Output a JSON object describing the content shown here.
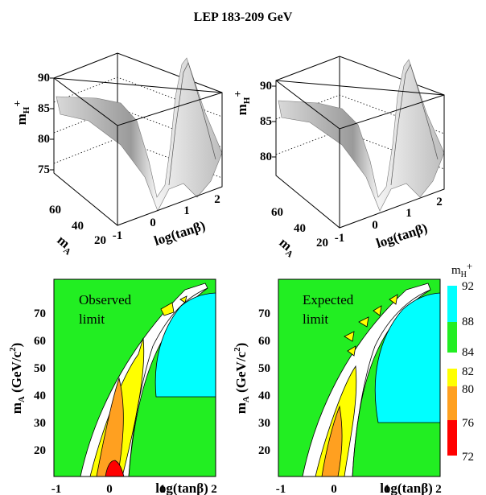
{
  "figure": {
    "title": "LEP 183-209 GeV"
  },
  "chart_data": [
    {
      "type": "surface3d",
      "panel": "observed-3d",
      "z_label": "m_H+",
      "z_ticks": [
        75,
        80,
        85,
        90
      ],
      "x_label": "log(tanβ)",
      "x_ticks": [
        -1,
        0,
        1,
        2
      ],
      "y_label": "m_A",
      "y_ticks": [
        20,
        40,
        60
      ]
    },
    {
      "type": "surface3d",
      "panel": "expected-3d",
      "z_label": "m_H+",
      "z_ticks": [
        80,
        85,
        90
      ],
      "x_label": "log(tanβ)",
      "x_ticks": [
        -1,
        0,
        1,
        2
      ],
      "y_label": "m_A",
      "y_ticks": [
        20,
        40,
        60
      ]
    },
    {
      "type": "contour",
      "panel": "observed",
      "annotation": [
        "Observed",
        "limit"
      ],
      "xlabel": "log(tanβ)",
      "ylabel": "m_A (GeV/c²)",
      "xlim": [
        -1.1,
        2.1
      ],
      "ylim": [
        12,
        76
      ],
      "x_ticks": [
        -1,
        0,
        1,
        2
      ],
      "y_ticks": [
        20,
        30,
        40,
        50,
        60,
        70
      ]
    },
    {
      "type": "contour",
      "panel": "expected",
      "annotation": [
        "Expected",
        "limit"
      ],
      "xlabel": "log(tanβ)",
      "ylabel": "m_A (GeV/c²)",
      "xlim": [
        -1.1,
        2.1
      ],
      "ylim": [
        12,
        76
      ],
      "x_ticks": [
        -1,
        0,
        1,
        2
      ],
      "y_ticks": [
        20,
        30,
        40,
        50,
        60,
        70
      ]
    }
  ],
  "legend": {
    "title": "m_H+",
    "levels": [
      72,
      76,
      80,
      82,
      84,
      88,
      92
    ],
    "bands": [
      {
        "from": 72,
        "to": 76,
        "color": "#ff0000"
      },
      {
        "from": 76,
        "to": 80,
        "color": "#ffa020"
      },
      {
        "from": 80,
        "to": 82,
        "color": "#ffff00"
      },
      {
        "from": 84,
        "to": 88,
        "color": "#22ee22"
      },
      {
        "from": 88,
        "to": 92,
        "color": "#00ffff"
      }
    ]
  },
  "colors": {
    "red": "#ff0000",
    "orange": "#ffa020",
    "yellow": "#ffff00",
    "green": "#22ee22",
    "cyan": "#00ffff"
  }
}
